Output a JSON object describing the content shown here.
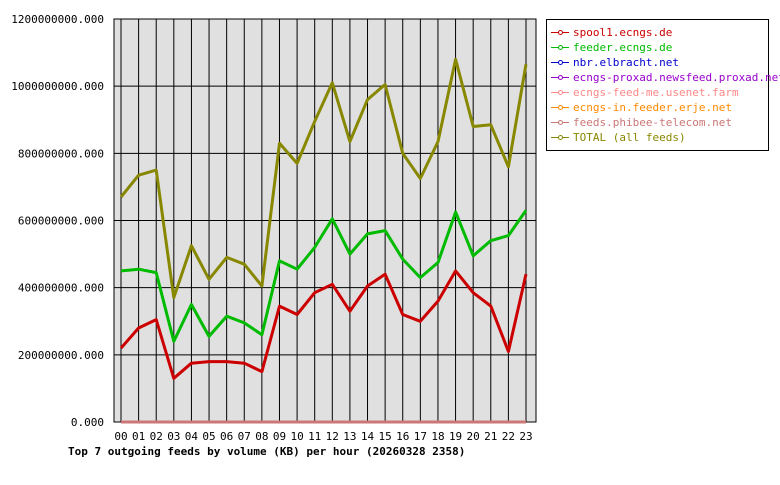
{
  "chart_data": {
    "type": "line",
    "title": "Top 7 outgoing feeds by volume (KB) per hour (20260328 2358)",
    "xlabel": "",
    "ylabel": "",
    "categories": [
      "00",
      "01",
      "02",
      "03",
      "04",
      "05",
      "06",
      "07",
      "08",
      "09",
      "10",
      "11",
      "12",
      "13",
      "14",
      "15",
      "16",
      "17",
      "18",
      "19",
      "20",
      "21",
      "22",
      "23"
    ],
    "ylim": [
      0,
      1200000000
    ],
    "yticks": [
      "0.000",
      "200000000.000",
      "400000000.000",
      "600000000.000",
      "800000000.000",
      "1000000000.000",
      "1200000000.000"
    ],
    "ytick_values": [
      0,
      200000000,
      400000000,
      600000000,
      800000000,
      1000000000,
      1200000000
    ],
    "grid": true,
    "legend_position": "right",
    "series": [
      {
        "name": "spool1.ecngs.de",
        "color": "#cc0000",
        "values": [
          220000000,
          280000000,
          305000000,
          130000000,
          175000000,
          180000000,
          180000000,
          175000000,
          150000000,
          345000000,
          320000000,
          385000000,
          410000000,
          330000000,
          405000000,
          440000000,
          320000000,
          300000000,
          360000000,
          450000000,
          385000000,
          345000000,
          210000000,
          440000000
        ]
      },
      {
        "name": "feeder.ecngs.de",
        "color": "#00bb00",
        "values": [
          450000000,
          455000000,
          445000000,
          240000000,
          350000000,
          255000000,
          315000000,
          295000000,
          260000000,
          480000000,
          455000000,
          520000000,
          605000000,
          500000000,
          560000000,
          570000000,
          485000000,
          430000000,
          475000000,
          625000000,
          495000000,
          540000000,
          555000000,
          630000000
        ]
      },
      {
        "name": "nbr.elbracht.net",
        "color": "#0000cc",
        "values": [
          0,
          0,
          0,
          0,
          0,
          0,
          0,
          0,
          0,
          0,
          0,
          0,
          0,
          0,
          0,
          0,
          0,
          0,
          0,
          0,
          0,
          0,
          0,
          0
        ]
      },
      {
        "name": "ecngs-proxad.newsfeed.proxad.net",
        "color": "#9900cc",
        "values": [
          0,
          0,
          0,
          0,
          0,
          0,
          0,
          0,
          0,
          0,
          0,
          0,
          0,
          0,
          0,
          0,
          0,
          0,
          0,
          0,
          0,
          0,
          0,
          0
        ]
      },
      {
        "name": "ecngs-feed-me.usenet.farm",
        "color": "#ff8888",
        "values": [
          0,
          0,
          0,
          0,
          0,
          0,
          0,
          0,
          0,
          0,
          0,
          0,
          0,
          0,
          0,
          0,
          0,
          0,
          0,
          0,
          0,
          0,
          0,
          0
        ]
      },
      {
        "name": "ecngs-in.feeder.erje.net",
        "color": "#ff8800",
        "values": [
          0,
          0,
          0,
          0,
          0,
          0,
          0,
          0,
          0,
          0,
          0,
          0,
          0,
          0,
          0,
          0,
          0,
          0,
          0,
          0,
          0,
          0,
          0,
          0
        ]
      },
      {
        "name": "feeds.phibee-telecom.net",
        "color": "#cc7777",
        "values": [
          0,
          0,
          0,
          0,
          0,
          0,
          0,
          0,
          0,
          0,
          0,
          0,
          0,
          0,
          0,
          0,
          0,
          0,
          0,
          0,
          0,
          0,
          0,
          0
        ]
      },
      {
        "name": "TOTAL (all feeds)",
        "color": "#888800",
        "values": [
          670000000,
          735000000,
          750000000,
          370000000,
          525000000,
          425000000,
          490000000,
          470000000,
          405000000,
          830000000,
          770000000,
          895000000,
          1010000000,
          835000000,
          960000000,
          1005000000,
          800000000,
          725000000,
          835000000,
          1080000000,
          880000000,
          885000000,
          760000000,
          1065000000
        ]
      }
    ]
  }
}
